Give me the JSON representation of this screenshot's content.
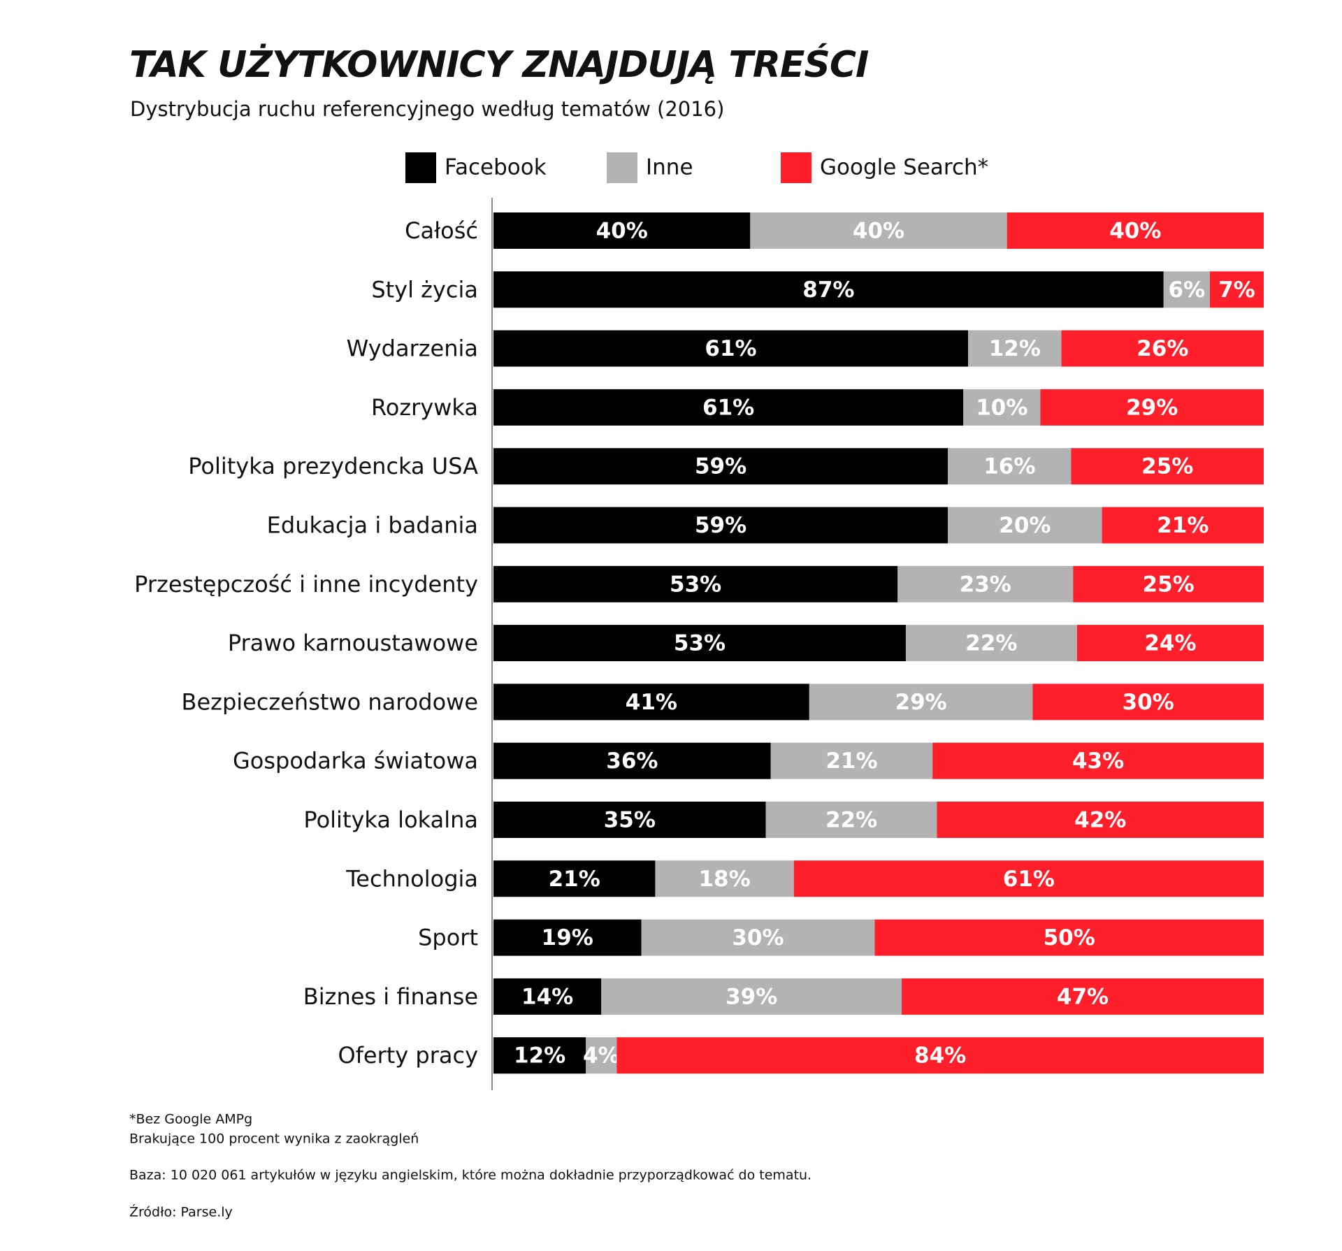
{
  "chart_data": {
    "type": "stacked_bar_horizontal",
    "title": "TAK UŻYTKOWNICY ZNAJDUJĄ TREŚCI",
    "subtitle": "Dystrybucja ruchu referencyjnego według tematów (2016)",
    "categories": [
      "Całość",
      "Styl życia",
      "Wydarzenia",
      "Rozrywka",
      "Polityka prezydencka USA",
      "Edukacja i badania",
      "Przestępczość i inne incydenty",
      "Prawo karnoustawowe",
      "Bezpieczeństwo narodowe",
      "Gospodarka światowa",
      "Polityka lokalna",
      "Technologia",
      "Sport",
      "Biznes i finanse",
      "Oferty pracy"
    ],
    "series": [
      {
        "name": "Facebook",
        "color": "#000000",
        "values": [
          40,
          87,
          61,
          61,
          59,
          59,
          53,
          53,
          41,
          36,
          35,
          21,
          19,
          14,
          12
        ],
        "value_labels": [
          "40%",
          "87%",
          "61%",
          "61%",
          "59%",
          "59%",
          "53%",
          "53%",
          "41%",
          "36%",
          "35%",
          "21%",
          "19%",
          "14%",
          "12%"
        ]
      },
      {
        "name": "Inne",
        "color": "#b3b3b3",
        "values": [
          40,
          6,
          12,
          10,
          16,
          20,
          23,
          22,
          29,
          21,
          22,
          18,
          30,
          39,
          4
        ],
        "value_labels": [
          "40%",
          "6%",
          "12%",
          "10%",
          "16%",
          "20%",
          "23%",
          "22%",
          "29%",
          "21%",
          "22%",
          "18%",
          "30%",
          "39%",
          "4%"
        ]
      },
      {
        "name": "Google Search*",
        "color": "#ff1f2a",
        "values": [
          40,
          7,
          26,
          29,
          25,
          21,
          25,
          24,
          30,
          43,
          42,
          61,
          50,
          47,
          84
        ],
        "value_labels": [
          "40%",
          "7%",
          "26%",
          "29%",
          "25%",
          "21%",
          "25%",
          "24%",
          "30%",
          "43%",
          "42%",
          "61%",
          "50%",
          "47%",
          "84%"
        ]
      }
    ],
    "notes": [
      "*Bez Google AMPg",
      "Brakujące 100 procent wynika z zaokrągleń",
      "Baza: 10 020 061 artykułów w języku angielskim, które można dokładnie przyporządkować do tematu.",
      "Źródło: Parse.ly"
    ]
  }
}
